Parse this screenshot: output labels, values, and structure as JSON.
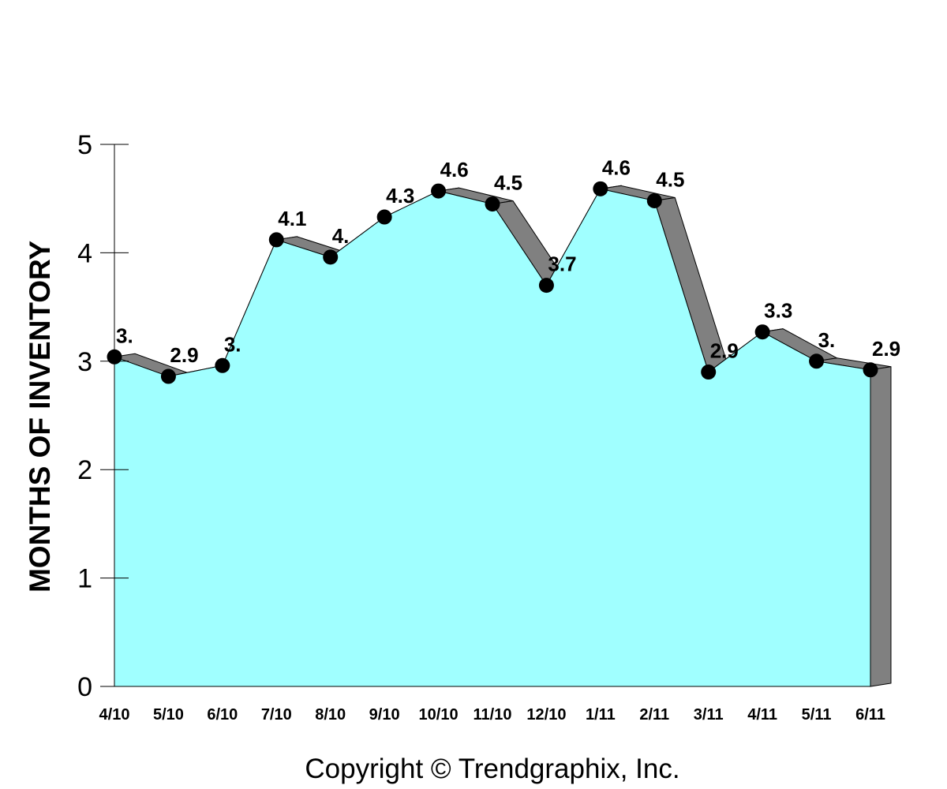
{
  "chart_data": {
    "type": "area",
    "categories": [
      "4/10",
      "5/10",
      "6/10",
      "7/10",
      "8/10",
      "9/10",
      "10/10",
      "11/10",
      "12/10",
      "1/11",
      "2/11",
      "3/11",
      "4/11",
      "5/11",
      "6/11"
    ],
    "values": [
      3.04,
      2.86,
      2.96,
      4.12,
      3.96,
      4.33,
      4.57,
      4.45,
      3.7,
      4.59,
      4.48,
      2.9,
      3.27,
      3.0,
      2.92
    ],
    "data_labels": [
      "3.",
      "2.9",
      "3.",
      "4.1",
      "4.",
      "4.3",
      "4.6",
      "4.5",
      "3.7",
      "4.6",
      "4.5",
      "2.9",
      "3.3",
      "3.",
      "2.9"
    ],
    "ylabel": "MONTHS OF INVENTORY",
    "xlabel": "",
    "ylim": [
      0,
      5
    ],
    "yticks": [
      "0",
      "1",
      "2",
      "3",
      "4",
      "5"
    ],
    "grid": false,
    "legend": "none",
    "colors": {
      "fill": "#a0ffff",
      "depth": "#808080",
      "marker": "#000000",
      "line": "#000000"
    }
  },
  "footer": {
    "copyright": "Copyright © Trendgraphix, Inc."
  }
}
